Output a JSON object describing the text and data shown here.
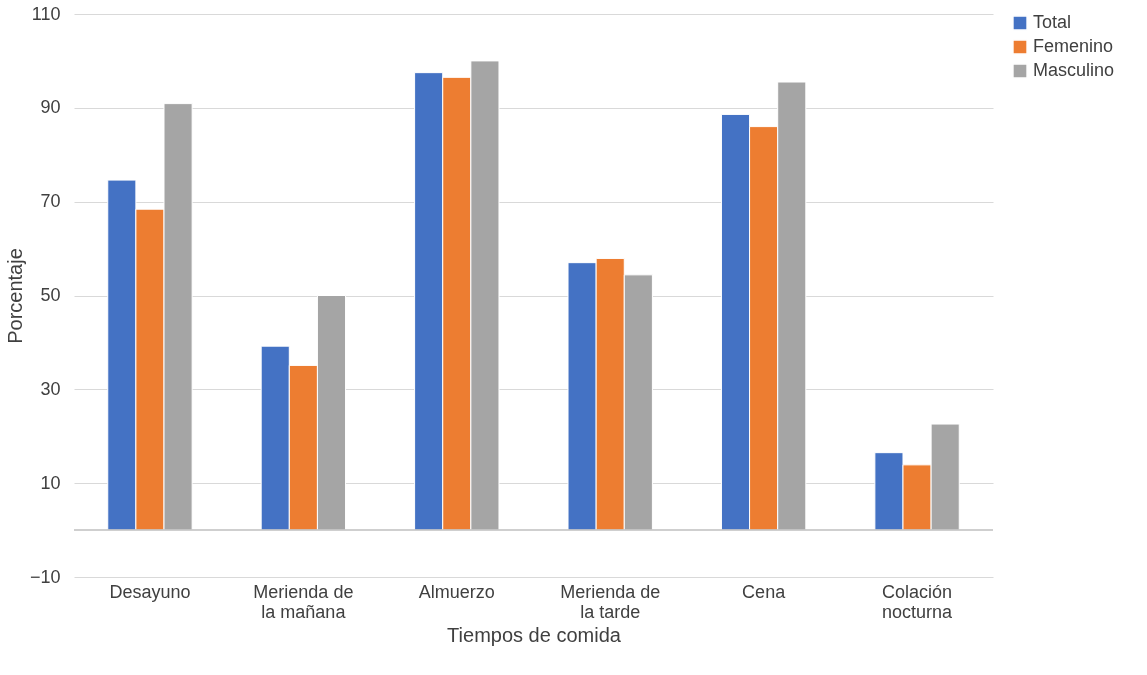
{
  "chart_data": {
    "type": "bar",
    "xlabel": "Tiempos de comida",
    "ylabel": "Porcentaje",
    "categories": [
      "Desayuno",
      "Merienda de la mañana",
      "Almuerzo",
      "Merienda de la tarde",
      "Cena",
      "Colación nocturna"
    ],
    "series": [
      {
        "name": "Total",
        "color": "#4472c4",
        "values": [
          74.6,
          39.2,
          97.5,
          57.0,
          88.6,
          16.5
        ]
      },
      {
        "name": "Femenino",
        "color": "#ed7d31",
        "values": [
          68.4,
          35.1,
          96.5,
          57.9,
          86.0,
          13.9
        ]
      },
      {
        "name": "Masculino",
        "color": "#a5a5a5",
        "values": [
          90.9,
          50.0,
          100.0,
          54.4,
          95.5,
          22.6
        ]
      }
    ],
    "ylim": [
      -10,
      110
    ],
    "yticks": [
      -10,
      10,
      30,
      50,
      70,
      90,
      110
    ],
    "grid": "y",
    "legend": "right"
  }
}
